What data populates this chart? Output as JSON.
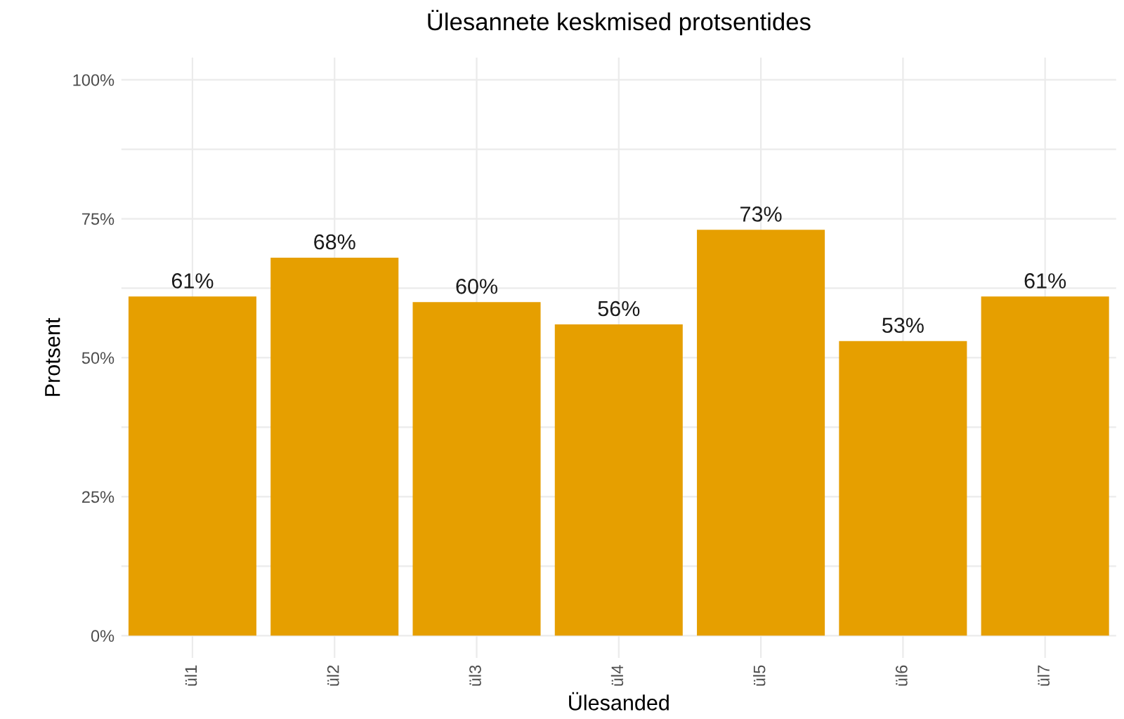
{
  "chart_data": {
    "type": "bar",
    "title": "Ülesannete keskmised protsentides",
    "xlabel": "Ülesanded",
    "ylabel": "Protsent",
    "categories": [
      "ül1",
      "ül2",
      "ül3",
      "ül4",
      "ül5",
      "ül6",
      "ül7"
    ],
    "values": [
      61,
      68,
      60,
      56,
      73,
      53,
      61
    ],
    "value_labels": [
      "61%",
      "68%",
      "60%",
      "56%",
      "73%",
      "53%",
      "61%"
    ],
    "color": "#e69f00",
    "ylim": [
      -4,
      104
    ],
    "yticks": [
      {
        "value": 0,
        "label": "0%"
      },
      {
        "value": 12.5,
        "label": null
      },
      {
        "value": 25,
        "label": "25%"
      },
      {
        "value": 37.5,
        "label": null
      },
      {
        "value": 50,
        "label": "50%"
      },
      {
        "value": 62.5,
        "label": null
      },
      {
        "value": 75,
        "label": "75%"
      },
      {
        "value": 87.5,
        "label": null
      },
      {
        "value": 100,
        "label": "100%"
      }
    ],
    "grid": true,
    "legend": false
  }
}
